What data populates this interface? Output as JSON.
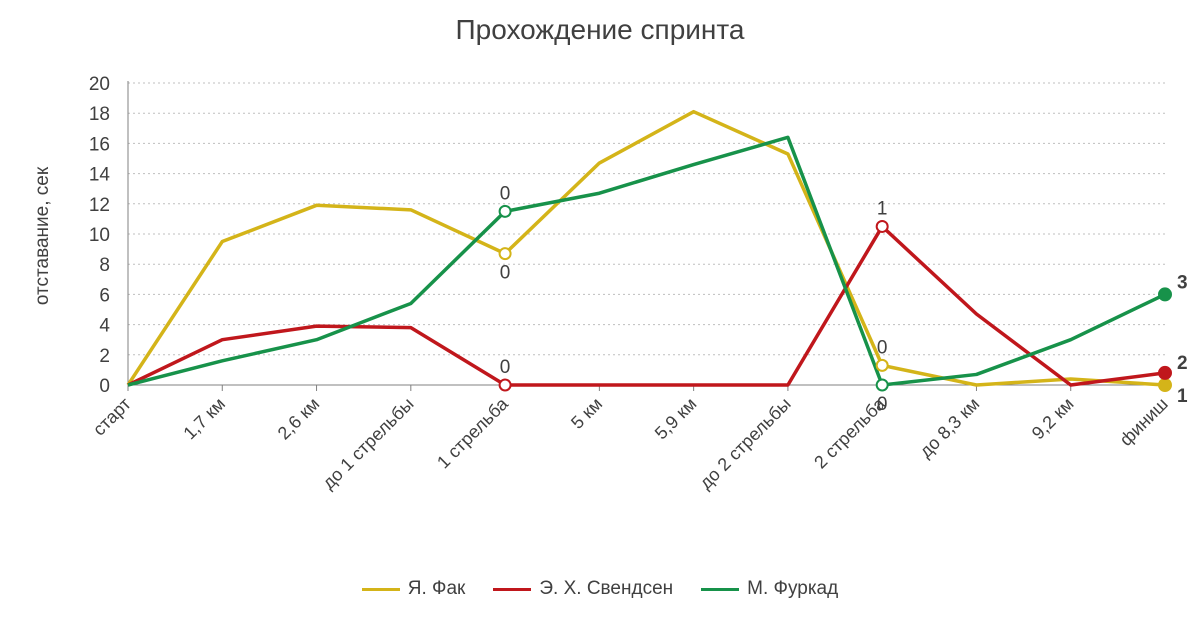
{
  "chart_data": {
    "type": "line",
    "title": "Прохождение спринта",
    "xlabel": "",
    "ylabel": "отставание, сек",
    "ylim": [
      0,
      20
    ],
    "yticks": [
      0,
      2,
      4,
      6,
      8,
      10,
      12,
      14,
      16,
      18,
      20
    ],
    "grid": true,
    "legend_position": "bottom",
    "categories": [
      "старт",
      "1,7 км",
      "2,6 км",
      "до 1 стрельбы",
      "1 стрельба",
      "5 км",
      "5,9 км",
      "до 2 стрельбы",
      "2 стрельба",
      "до 8,3 км",
      "9,2 км",
      "финиш"
    ],
    "series": [
      {
        "name": "Я. Фак",
        "color": "#D4B419",
        "values": [
          0,
          9.5,
          11.9,
          11.6,
          8.7,
          14.7,
          18.1,
          15.3,
          1.3,
          0,
          0.4,
          0
        ],
        "markers": [
          {
            "index": 4,
            "label": "0",
            "label_pos": "below",
            "filled": false
          },
          {
            "index": 8,
            "label": "0",
            "label_pos": "above",
            "filled": false
          },
          {
            "index": 11,
            "label": "1",
            "label_pos": "right",
            "filled": true
          }
        ]
      },
      {
        "name": "Э. Х. Свендсен",
        "color": "#C0171C",
        "values": [
          0,
          3.0,
          3.9,
          3.8,
          0,
          0,
          0,
          0,
          10.5,
          4.7,
          0,
          0.8
        ],
        "markers": [
          {
            "index": 4,
            "label": "0",
            "label_pos": "above",
            "filled": false
          },
          {
            "index": 8,
            "label": "1",
            "label_pos": "above",
            "filled": false
          },
          {
            "index": 11,
            "label": "2",
            "label_pos": "right",
            "filled": true
          }
        ]
      },
      {
        "name": "М. Фуркад",
        "color": "#17924A",
        "values": [
          0,
          1.6,
          3.0,
          5.4,
          11.5,
          12.7,
          14.6,
          16.4,
          0,
          0.7,
          3.0,
          6.0
        ],
        "markers": [
          {
            "index": 4,
            "label": "0",
            "label_pos": "above",
            "filled": false
          },
          {
            "index": 8,
            "label": "0",
            "label_pos": "below",
            "filled": false
          },
          {
            "index": 11,
            "label": "3",
            "label_pos": "right",
            "filled": true
          }
        ]
      }
    ]
  }
}
